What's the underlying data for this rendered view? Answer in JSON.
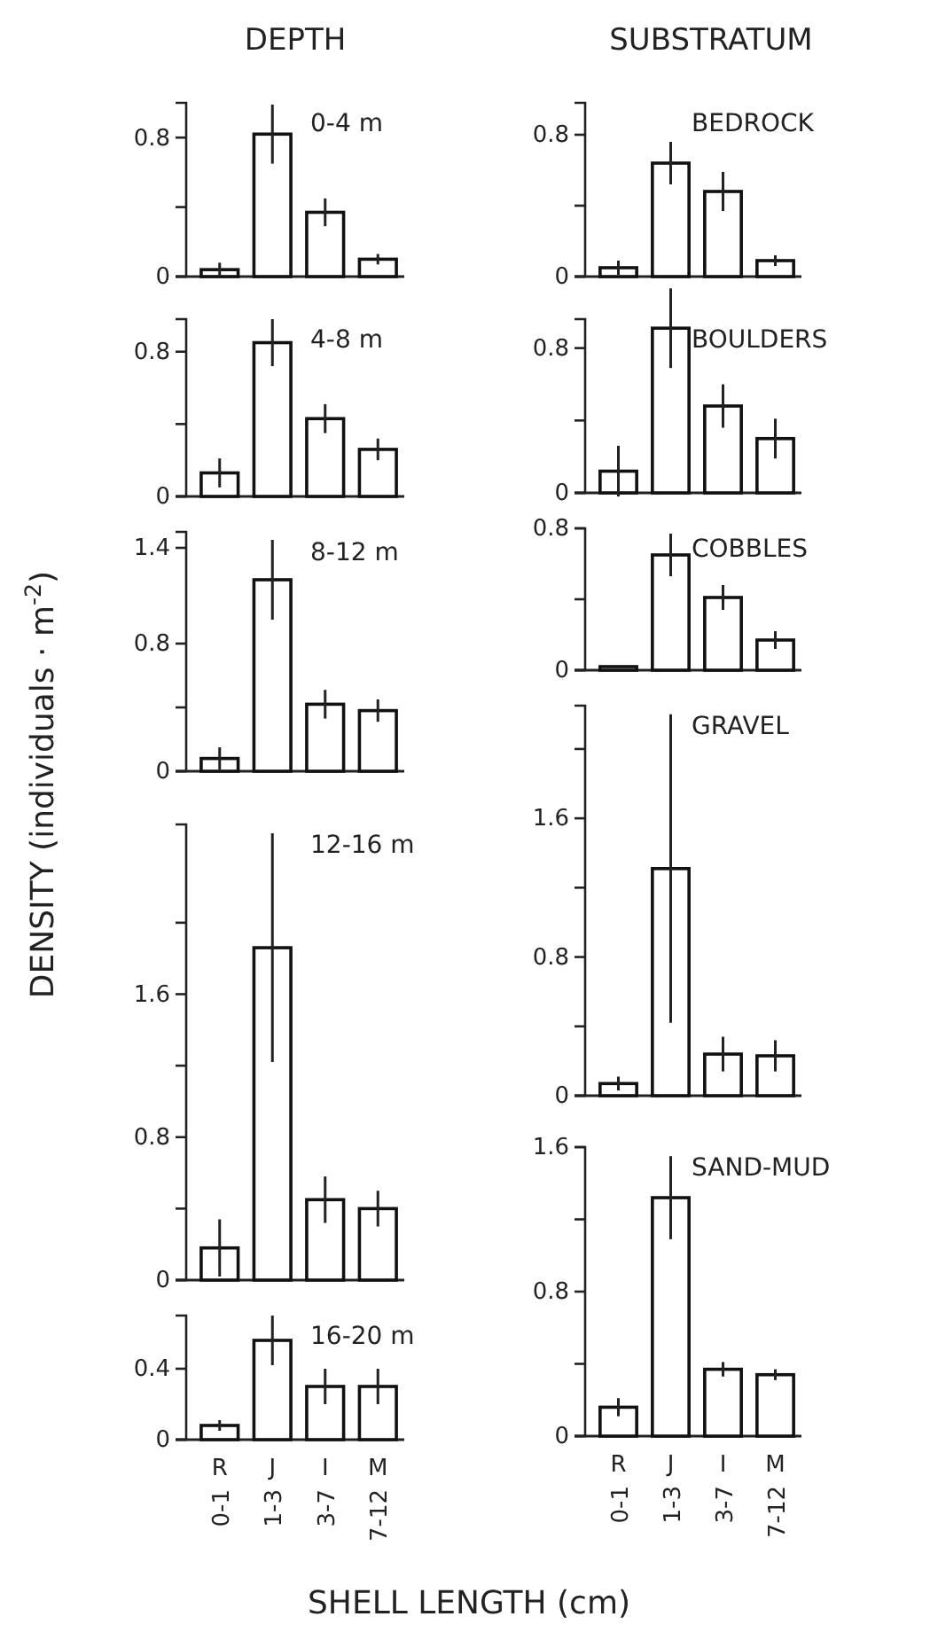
{
  "chart_data": [
    {
      "type": "bar",
      "title": "DEPTH",
      "annotations": [
        "0-4 m"
      ],
      "categories": [
        null,
        null,
        null,
        null
      ],
      "values": [
        0.04,
        0.82,
        0.37,
        0.1
      ],
      "errors": [
        0.04,
        0.17,
        0.08,
        0.03
      ],
      "ylim": [
        0,
        1.0
      ],
      "yticks": [
        0,
        {
          "value": 0.4,
          "label": null
        },
        0.8
      ],
      "tick_labels": "y"
    },
    {
      "type": "bar",
      "annotations": [
        "4-8 m"
      ],
      "categories": [
        null,
        null,
        null,
        null
      ],
      "values": [
        0.13,
        0.85,
        0.43,
        0.26
      ],
      "errors": [
        0.08,
        0.13,
        0.08,
        0.06
      ],
      "ylim": [
        0,
        0.98
      ],
      "yticks": [
        0,
        {
          "value": 0.4,
          "label": null
        },
        0.8
      ],
      "tick_labels": "y"
    },
    {
      "type": "bar",
      "annotations": [
        "8-12 m"
      ],
      "categories": [
        null,
        null,
        null,
        null
      ],
      "values": [
        0.08,
        1.2,
        0.42,
        0.38
      ],
      "errors": [
        0.07,
        0.25,
        0.09,
        0.07
      ],
      "ylim": [
        0,
        1.5
      ],
      "yticks": [
        0,
        {
          "value": 0.4,
          "label": null
        },
        0.8,
        1.4
      ],
      "tick_labels": "y"
    },
    {
      "type": "bar",
      "annotations": [
        "12-16 m"
      ],
      "ylabel": "DENSITY (individuals · m$^{-2}$)",
      "categories": [
        null,
        null,
        null,
        null
      ],
      "values": [
        0.18,
        1.86,
        0.45,
        0.4
      ],
      "errors": [
        0.16,
        0.64,
        0.13,
        0.1
      ],
      "ylim": [
        0,
        2.55
      ],
      "yticks": [
        0,
        {
          "value": 0.4,
          "label": null
        },
        0.8,
        {
          "value": 1.2,
          "label": null
        },
        1.6,
        {
          "value": 2.0,
          "label": null
        }
      ],
      "tick_labels": "y"
    },
    {
      "type": "bar",
      "annotations": [
        "16-20 m"
      ],
      "xlabel": "SHELL LENGTH (cm)",
      "categories": [
        "R\n0-1",
        "J\n1-3",
        "I\n3-7",
        "M\n7-12"
      ],
      "values": [
        0.08,
        0.56,
        0.3,
        0.3
      ],
      "errors": [
        0.03,
        0.14,
        0.1,
        0.1
      ],
      "ylim": [
        0,
        0.7
      ],
      "yticks": [
        0,
        0.4
      ]
    },
    {
      "type": "bar",
      "title": "SUBSTRATUM",
      "annotations": [
        "BEDROCK"
      ],
      "categories": [
        null,
        null,
        null,
        null
      ],
      "values": [
        0.05,
        0.64,
        0.48,
        0.09
      ],
      "errors": [
        0.04,
        0.12,
        0.11,
        0.03
      ],
      "ylim": [
        0,
        0.98
      ],
      "yticks": [
        0,
        {
          "value": 0.4,
          "label": null
        },
        0.8
      ],
      "tick_labels": "y"
    },
    {
      "type": "bar",
      "annotations": [
        "BOULDERS"
      ],
      "categories": [
        null,
        null,
        null,
        null
      ],
      "values": [
        0.12,
        0.91,
        0.48,
        0.3
      ],
      "errors": [
        0.14,
        0.22,
        0.12,
        0.11
      ],
      "ylim": [
        0,
        0.96
      ],
      "yticks": [
        0,
        {
          "value": 0.4,
          "label": null
        },
        0.8
      ],
      "tick_labels": "y"
    },
    {
      "type": "bar",
      "annotations": [
        "COBBLES"
      ],
      "categories": [
        null,
        null,
        null,
        null
      ],
      "values": [
        0.02,
        0.65,
        0.41,
        0.17
      ],
      "errors": [
        null,
        0.12,
        0.07,
        0.05
      ],
      "ylim": [
        0,
        0.8
      ],
      "yticks": [
        0,
        {
          "value": 0.4,
          "label": null
        },
        0.8
      ],
      "tick_labels": "y"
    },
    {
      "type": "bar",
      "annotations": [
        "GRAVEL"
      ],
      "categories": [
        null,
        null,
        null,
        null
      ],
      "values": [
        0.07,
        1.31,
        0.24,
        0.23
      ],
      "errors": [
        0.04,
        0.89,
        0.1,
        0.09
      ],
      "ylim": [
        0,
        2.25
      ],
      "yticks": [
        0,
        {
          "value": 0.4,
          "label": null
        },
        0.8,
        {
          "value": 1.2,
          "label": null
        },
        1.6,
        {
          "value": 2.0,
          "label": null
        }
      ],
      "tick_labels": "y"
    },
    {
      "type": "bar",
      "annotations": [
        "SAND-MUD"
      ],
      "categories": [
        "R\n0-1",
        "J\n1-3",
        "I\n3-7",
        "M\n7-12"
      ],
      "values": [
        0.16,
        1.32,
        0.37,
        0.34
      ],
      "errors": [
        0.05,
        0.23,
        0.04,
        0.03
      ],
      "ylim": [
        0,
        1.6
      ],
      "yticks": [
        0,
        {
          "value": 0.4,
          "label": null
        },
        0.8,
        {
          "value": 1.2,
          "label": null
        },
        1.6
      ]
    }
  ]
}
